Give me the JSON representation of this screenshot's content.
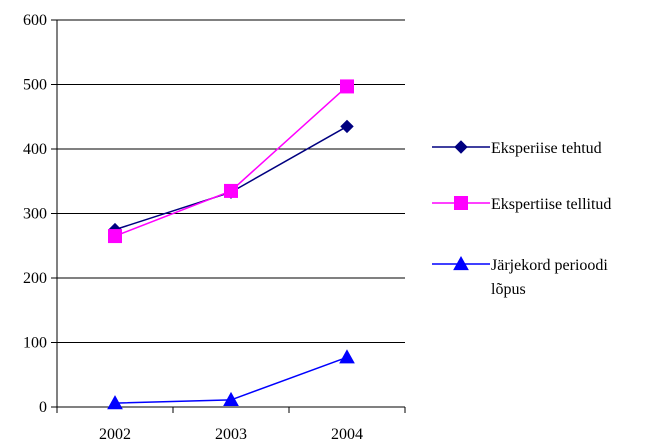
{
  "chart_data": {
    "type": "line",
    "title": "",
    "xlabel": "",
    "ylabel": "",
    "categories": [
      "2002",
      "2003",
      "2004"
    ],
    "ylim": [
      0,
      600
    ],
    "yticks": [
      "0",
      "100",
      "200",
      "300",
      "400",
      "500",
      "600"
    ],
    "grid": "horizontal",
    "legend_position": "right",
    "series": [
      {
        "name": "Eksperiise tehtud",
        "values": [
          275,
          333,
          435
        ],
        "color": "#000080",
        "marker": "diamond",
        "legend_lines": [
          "Eksperiise tehtud"
        ]
      },
      {
        "name": "Ekspertiise tellitud",
        "values": [
          265,
          335,
          497
        ],
        "color": "#FF00FF",
        "marker": "square",
        "legend_lines": [
          "Ekspertiise tellitud"
        ]
      },
      {
        "name": "Järjekord perioodi lõpus",
        "values": [
          6,
          11,
          77
        ],
        "color": "#0000FF",
        "marker": "triangle",
        "legend_lines": [
          "Järjekord perioodi",
          "lõpus"
        ]
      }
    ]
  }
}
